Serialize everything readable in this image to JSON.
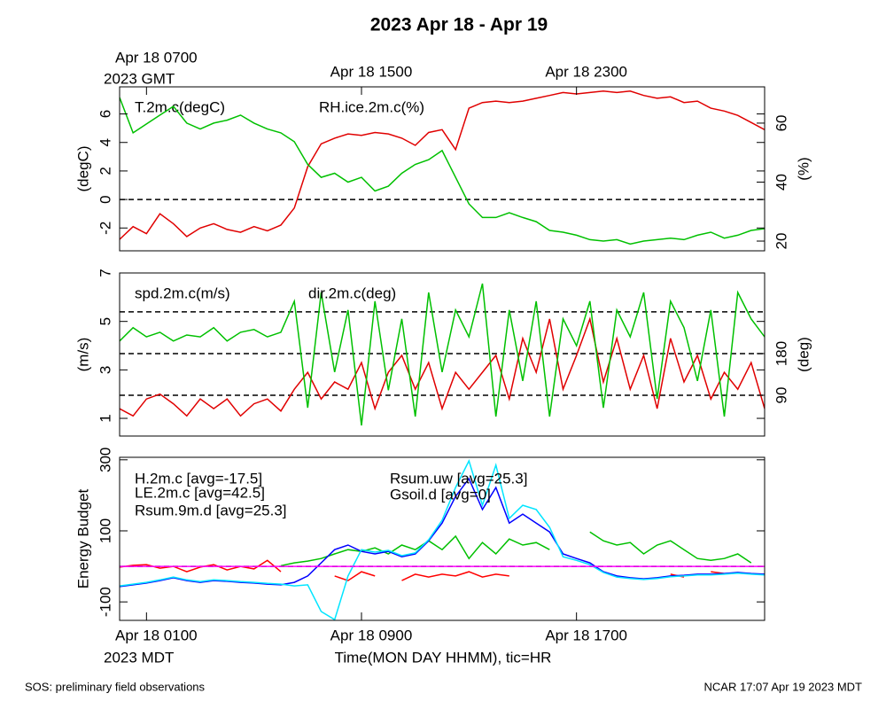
{
  "title": "2023 Apr 18 - Apr 19",
  "gmt_label": "2023 GMT",
  "mdt_label": "2023 MDT",
  "footer_left": "SOS: preliminary field observations",
  "footer_right": "NCAR 17:07 Apr 19 2023 MDT",
  "chart_data": [
    {
      "type": "line",
      "ylabel": "(degC)",
      "y2label": "(%)",
      "x": [
        0,
        0.5,
        1,
        1.5,
        2,
        2.5,
        3,
        3.5,
        4,
        4.5,
        5,
        5.5,
        6,
        6.5,
        7,
        7.5,
        8,
        8.5,
        9,
        9.5,
        10,
        10.5,
        11,
        11.5,
        12,
        12.5,
        13,
        13.5,
        14,
        14.5,
        15,
        15.5,
        16,
        16.5,
        17,
        17.5,
        18,
        18.5,
        19,
        19.5,
        20,
        20.5,
        21,
        21.5,
        22,
        22.5,
        23,
        23.5,
        24
      ],
      "xlim": [
        0,
        24
      ],
      "x2ticks": [
        {
          "value": 1,
          "label": "Apr 18 0700"
        },
        {
          "value": 9,
          "label": "Apr 18 1500"
        },
        {
          "value": 17,
          "label": "Apr 18 2300"
        }
      ],
      "ylim": [
        -3.6,
        7.9
      ],
      "yticks": [
        -2,
        0,
        2,
        4,
        6
      ],
      "y2lim": [
        16.7,
        72.3
      ],
      "y2ticks": [
        20,
        40,
        60
      ],
      "hlines": [
        0
      ],
      "series": [
        {
          "name": "T.2m.c(degC)",
          "color": "#e00000",
          "values": [
            -2.8,
            -1.9,
            -2.4,
            -1.0,
            -1.7,
            -2.6,
            -2.0,
            -1.7,
            -2.1,
            -2.3,
            -1.9,
            -2.2,
            -1.8,
            -0.6,
            2.3,
            3.9,
            4.3,
            4.6,
            4.5,
            4.7,
            4.6,
            4.3,
            3.8,
            4.7,
            4.9,
            3.5,
            6.4,
            6.8,
            6.9,
            6.8,
            6.9,
            7.1,
            7.3,
            7.5,
            7.4,
            7.5,
            7.6,
            7.5,
            7.6,
            7.3,
            7.1,
            7.2,
            6.8,
            6.9,
            6.4,
            6.2,
            5.9,
            5.4,
            4.9
          ]
        },
        {
          "name": "RH.ice.2m.c(%)",
          "color": "#00c000",
          "axis": "y2",
          "values": [
            68.7,
            56.7,
            59.7,
            62.7,
            65.7,
            60,
            58,
            60,
            61,
            62.7,
            60,
            58,
            56.7,
            53.7,
            46,
            41.6,
            43,
            40,
            41.6,
            37,
            38.6,
            43,
            46,
            47.6,
            50.7,
            41.6,
            32.6,
            28,
            28,
            29.6,
            28,
            26.6,
            23.6,
            23,
            22,
            20.5,
            20,
            20.5,
            19,
            20,
            20.5,
            21,
            20.5,
            22,
            23,
            21,
            22,
            23.6,
            24.2
          ]
        }
      ]
    },
    {
      "type": "line",
      "ylabel": "(m/s)",
      "y2label": "(deg)",
      "x": [
        0,
        0.5,
        1,
        1.5,
        2,
        2.5,
        3,
        3.5,
        4,
        4.5,
        5,
        5.5,
        6,
        6.5,
        7,
        7.5,
        8,
        8.5,
        9,
        9.5,
        10,
        10.5,
        11,
        11.5,
        12,
        12.5,
        13,
        13.5,
        14,
        14.5,
        15,
        15.5,
        16,
        16.5,
        17,
        17.5,
        18,
        18.5,
        19,
        19.5,
        20,
        20.5,
        21,
        21.5,
        22,
        22.5,
        23,
        23.5,
        24
      ],
      "xlim": [
        0,
        24
      ],
      "ylim": [
        0.27,
        7
      ],
      "yticks": [
        1,
        3,
        5,
        7
      ],
      "y2lim": [
        2,
        354
      ],
      "y2ticks": [
        90,
        180
      ],
      "y2_hlines": [
        90,
        180,
        270
      ],
      "series": [
        {
          "name": "spd.2m.c(m/s)",
          "color": "#e00000",
          "values": [
            1.4,
            1.1,
            1.8,
            2.0,
            1.6,
            1.1,
            1.8,
            1.4,
            1.8,
            1.1,
            1.6,
            1.8,
            1.3,
            2.2,
            2.9,
            1.8,
            2.5,
            2.2,
            3.3,
            1.4,
            2.9,
            3.6,
            2.2,
            3.3,
            1.4,
            2.9,
            2.2,
            2.9,
            3.6,
            1.8,
            4.3,
            2.9,
            5.1,
            2.2,
            3.6,
            5.1,
            2.5,
            4.3,
            2.2,
            3.6,
            1.4,
            4.3,
            2.5,
            3.6,
            1.8,
            2.9,
            2.2,
            3.3,
            1.4
          ]
        },
        {
          "name": "dir.2m.c(deg)",
          "color": "#00c000",
          "axis": "y2",
          "values": [
            207,
            236,
            216,
            226,
            207,
            220,
            216,
            236,
            207,
            226,
            232,
            216,
            226,
            293,
            63,
            312,
            140,
            274,
            25,
            293,
            101,
            255,
            44,
            312,
            140,
            274,
            216,
            331,
            44,
            274,
            121,
            293,
            44,
            255,
            197,
            293,
            63,
            274,
            216,
            312,
            82,
            293,
            236,
            121,
            274,
            44,
            312,
            255,
            216
          ]
        }
      ]
    },
    {
      "type": "line",
      "ylabel": "Energy Budget",
      "xlabel": "Time(MON DAY HHMM), tic=HR",
      "x": [
        0,
        0.5,
        1,
        1.5,
        2,
        2.5,
        3,
        3.5,
        4,
        4.5,
        5,
        5.5,
        6,
        6.5,
        7,
        7.5,
        8,
        8.5,
        9,
        9.5,
        10,
        10.5,
        11,
        11.5,
        12,
        12.5,
        13,
        13.5,
        14,
        14.5,
        15,
        15.5,
        16,
        16.5,
        17,
        17.5,
        18,
        18.5,
        19,
        19.5,
        20,
        20.5,
        21,
        21.5,
        22,
        22.5,
        23,
        23.5,
        24
      ],
      "xlim": [
        0,
        24
      ],
      "xticks": [
        {
          "value": 1,
          "label": "Apr 18 0100"
        },
        {
          "value": 9,
          "label": "Apr 18 0900"
        },
        {
          "value": 17,
          "label": "Apr 18 1700"
        }
      ],
      "ylim": [
        -152,
        307
      ],
      "yticks": [
        -100,
        100,
        300
      ],
      "hlines": [
        0
      ],
      "series": [
        {
          "name": "H.2m.c [avg=-17.5]",
          "color": "#ff0000",
          "values": [
            -2,
            3,
            5,
            -5,
            0,
            -15,
            -2,
            5,
            -10,
            0,
            -7,
            17,
            -15,
            null,
            null,
            null,
            -27,
            -40,
            -15,
            -27,
            null,
            -40,
            -22,
            -30,
            -22,
            -27,
            -15,
            -30,
            -22,
            -27,
            null,
            null,
            null,
            null,
            null,
            null,
            null,
            null,
            null,
            null,
            null,
            -22,
            -30,
            null,
            -15,
            -20,
            null,
            null,
            null
          ]
        },
        {
          "name": "LE.2m.c [avg=42.5]",
          "color": "#00c000",
          "values": [
            null,
            null,
            null,
            null,
            null,
            null,
            null,
            null,
            null,
            null,
            null,
            null,
            2,
            10,
            15,
            22,
            35,
            47,
            42,
            52,
            35,
            60,
            47,
            72,
            47,
            85,
            22,
            67,
            35,
            77,
            60,
            67,
            47,
            null,
            null,
            97,
            72,
            60,
            67,
            35,
            60,
            72,
            47,
            22,
            17,
            22,
            35,
            10,
            null
          ]
        },
        {
          "name": "Rsum.9m.d [avg=25.3]",
          "color": "#0000ff",
          "values": [
            -57,
            -52,
            -47,
            -40,
            -32,
            -40,
            -45,
            -40,
            -42,
            -45,
            -47,
            -50,
            -52,
            -45,
            -27,
            10,
            47,
            60,
            42,
            35,
            42,
            27,
            35,
            72,
            122,
            197,
            247,
            160,
            222,
            122,
            147,
            122,
            97,
            35,
            22,
            10,
            -15,
            -27,
            -32,
            -35,
            -32,
            -27,
            -25,
            -22,
            -22,
            -20,
            -17,
            -20,
            -22
          ]
        },
        {
          "name": "Rsum.uw [avg=25.3]",
          "color": "#00e5ff",
          "values": [
            -55,
            -50,
            -45,
            -38,
            -30,
            -38,
            -43,
            -38,
            -40,
            -43,
            -45,
            -48,
            -50,
            -55,
            -52,
            -127,
            -150,
            -27,
            47,
            40,
            45,
            30,
            38,
            75,
            130,
            222,
            297,
            172,
            285,
            135,
            172,
            160,
            110,
            27,
            17,
            5,
            -17,
            -30,
            -34,
            -37,
            -34,
            -29,
            -27,
            -24,
            -24,
            -22,
            -19,
            -22,
            -24
          ]
        },
        {
          "name": "Gsoil.d [avg=0]",
          "color": "#ff00ff",
          "values": [
            0,
            0,
            0,
            0,
            0,
            0,
            0,
            0,
            0,
            0,
            0,
            0,
            0,
            0,
            0,
            0,
            0,
            0,
            0,
            0,
            0,
            0,
            0,
            0,
            0,
            0,
            0,
            0,
            0,
            0,
            0,
            0,
            0,
            0,
            0,
            0,
            0,
            0,
            0,
            0,
            0,
            0,
            0,
            0,
            0,
            0,
            0,
            0,
            0
          ]
        }
      ]
    }
  ]
}
